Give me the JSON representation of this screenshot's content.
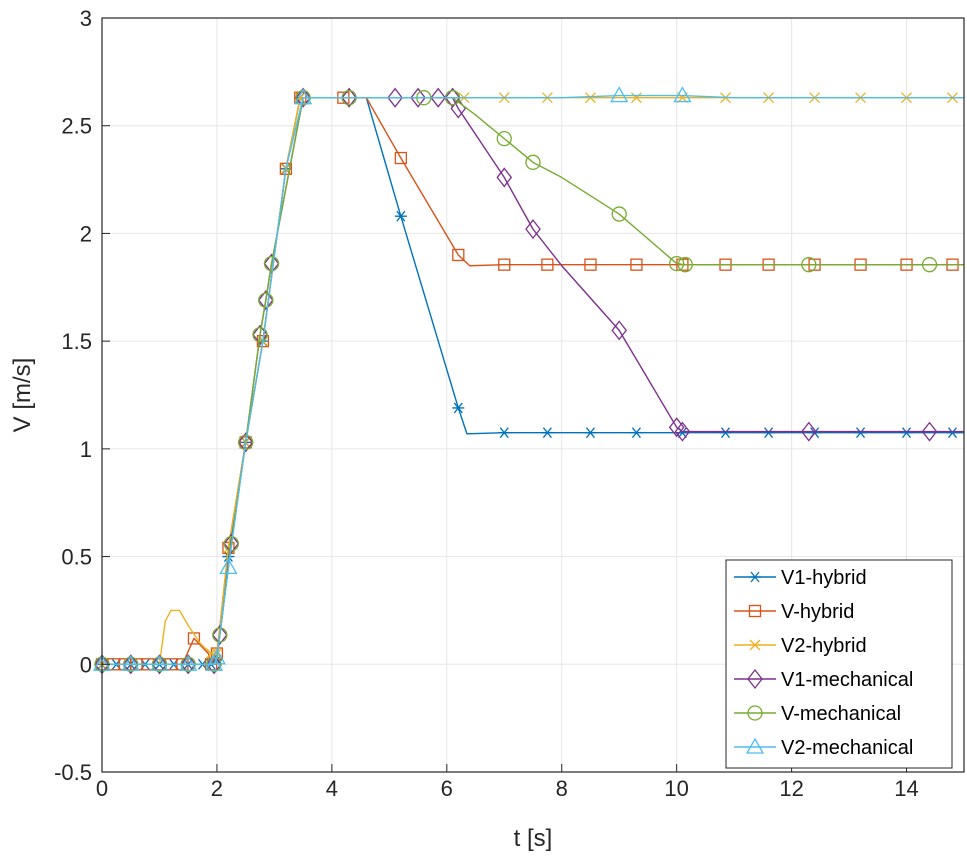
{
  "chart_data": {
    "type": "line",
    "title": "",
    "xlabel": "t [s]",
    "ylabel": "V [m/s]",
    "xlim": [
      0,
      15
    ],
    "ylim": [
      -0.5,
      3
    ],
    "xticks": [
      0,
      2,
      4,
      6,
      8,
      10,
      12,
      14
    ],
    "yticks": [
      -0.5,
      0,
      0.5,
      1,
      1.5,
      2,
      2.5,
      3
    ],
    "xtick_labels": [
      "0",
      "2",
      "4",
      "6",
      "8",
      "10",
      "12",
      "14"
    ],
    "ytick_labels": [
      "-0.5",
      "0",
      "0.5",
      "1",
      "1.5",
      "2",
      "2.5",
      "3"
    ],
    "grid": true,
    "legend_position": "bottom-right",
    "series": [
      {
        "name": "V1-hybrid",
        "color": "#0072BD",
        "marker": "asterisk",
        "x": [
          0,
          1.9,
          2.0,
          2.2,
          2.5,
          2.8,
          3.2,
          3.45,
          4.2,
          4.6,
          5.2,
          6.2,
          6.35,
          7.0,
          7.7,
          8.5,
          9.3,
          10.1,
          10.85,
          11.6,
          12.4,
          13.2,
          14.0,
          14.8,
          15
        ],
        "y": [
          0,
          0,
          0.02,
          0.5,
          1.03,
          1.5,
          2.3,
          2.63,
          2.63,
          2.63,
          2.08,
          1.19,
          1.07,
          1.075,
          1.075,
          1.075,
          1.075,
          1.075,
          1.075,
          1.075,
          1.075,
          1.075,
          1.075,
          1.075,
          1.075
        ]
      },
      {
        "name": "V-hybrid",
        "color": "#D95319",
        "marker": "square",
        "x": [
          0,
          0.2,
          0.4,
          0.6,
          0.8,
          1.0,
          1.2,
          1.4,
          1.6,
          1.85,
          1.9,
          2.0,
          2.2,
          2.5,
          2.8,
          3.2,
          3.45,
          4.2,
          4.6,
          5.2,
          6.2,
          6.4,
          7.0,
          7.7,
          8.5,
          9.3,
          10.1,
          10.85,
          11.6,
          12.4,
          13.2,
          14.0,
          14.8,
          15
        ],
        "y": [
          0,
          0,
          0,
          0,
          0,
          0,
          0,
          0,
          0.12,
          0.05,
          0,
          0.05,
          0.54,
          1.03,
          1.5,
          2.3,
          2.63,
          2.63,
          2.63,
          2.35,
          1.9,
          1.85,
          1.855,
          1.855,
          1.855,
          1.855,
          1.855,
          1.855,
          1.855,
          1.855,
          1.855,
          1.855,
          1.855,
          1.855
        ]
      },
      {
        "name": "V2-hybrid",
        "color": "#EDB120",
        "marker": "x",
        "x": [
          0,
          1.0,
          1.1,
          1.2,
          1.35,
          1.5,
          1.7,
          1.85,
          1.9,
          2.0,
          2.2,
          2.5,
          2.8,
          3.2,
          3.45,
          4.2,
          5.0,
          6.0,
          7.0,
          7.7,
          8.5,
          9.3,
          10.1,
          10.85,
          11.6,
          12.4,
          13.2,
          14.0,
          14.8,
          15
        ],
        "y": [
          0,
          0,
          0.2,
          0.25,
          0.25,
          0.18,
          0.1,
          0.06,
          0.05,
          0.05,
          0.54,
          1.03,
          1.5,
          2.3,
          2.63,
          2.63,
          2.63,
          2.63,
          2.63,
          2.63,
          2.63,
          2.63,
          2.63,
          2.63,
          2.63,
          2.63,
          2.63,
          2.63,
          2.63,
          2.63
        ]
      },
      {
        "name": "V1-mechanical",
        "color": "#7E2F8E",
        "marker": "diamond",
        "x": [
          0,
          1.95,
          2.0,
          2.25,
          2.5,
          2.75,
          2.85,
          2.95,
          3.5,
          4.3,
          5.1,
          5.5,
          6.1,
          6.2,
          6.5,
          7.0,
          7.5,
          8.0,
          9.0,
          10.0,
          10.1,
          11.0,
          12.3,
          13.0,
          14.4,
          15
        ],
        "y": [
          0,
          0,
          0.03,
          0.56,
          1.03,
          1.53,
          1.69,
          1.86,
          2.63,
          2.63,
          2.63,
          2.63,
          2.63,
          2.58,
          2.46,
          2.26,
          2.02,
          1.85,
          1.55,
          1.1,
          1.08,
          1.08,
          1.08,
          1.08,
          1.08,
          1.08
        ]
      },
      {
        "name": "V-mechanical",
        "color": "#77AC30",
        "marker": "circle",
        "x": [
          0,
          1.95,
          2.0,
          2.25,
          2.5,
          2.75,
          2.85,
          2.95,
          3.5,
          4.3,
          5.1,
          5.6,
          6.1,
          6.5,
          7.0,
          7.5,
          8.0,
          9.0,
          10.0,
          10.15,
          11.0,
          12.3,
          13.0,
          14.4,
          15
        ],
        "y": [
          0,
          0,
          0.03,
          0.56,
          1.03,
          1.53,
          1.69,
          1.86,
          2.63,
          2.63,
          2.63,
          2.63,
          2.63,
          2.55,
          2.44,
          2.33,
          2.26,
          2.09,
          1.86,
          1.855,
          1.855,
          1.855,
          1.855,
          1.855,
          1.855
        ]
      },
      {
        "name": "V2-mechanical",
        "color": "#4DBEEE",
        "marker": "triangle",
        "x": [
          0,
          1.95,
          2.0,
          2.2,
          2.5,
          2.8,
          3.2,
          3.5,
          4.3,
          5.2,
          6.1,
          7.0,
          8.0,
          9.0,
          10.1,
          11.0,
          12.0,
          13.0,
          14.0,
          15
        ],
        "y": [
          0,
          0,
          0.03,
          0.45,
          1.03,
          1.5,
          2.3,
          2.63,
          2.63,
          2.63,
          2.63,
          2.63,
          2.63,
          2.64,
          2.64,
          2.63,
          2.63,
          2.63,
          2.63,
          2.63
        ]
      }
    ],
    "series_markers_x": [
      [
        0,
        0.25,
        0.5,
        0.75,
        1.0,
        1.25,
        1.5,
        1.75,
        1.9,
        2.0,
        2.2,
        2.5,
        2.8,
        3.2,
        3.45,
        5.2,
        6.2,
        7.0,
        7.75,
        8.5,
        9.3,
        10.1,
        10.85,
        11.6,
        12.4,
        13.2,
        14.0,
        14.8
      ],
      [
        0,
        0.2,
        0.4,
        0.6,
        0.8,
        1.0,
        1.2,
        1.4,
        1.6,
        1.9,
        2.0,
        2.2,
        2.5,
        2.8,
        3.2,
        3.45,
        4.2,
        5.2,
        6.2,
        7.0,
        7.75,
        8.5,
        9.3,
        10.1,
        10.85,
        11.6,
        12.4,
        13.2,
        14.0,
        14.8
      ],
      [
        0,
        1.9,
        2.0,
        2.2,
        2.5,
        2.8,
        3.2,
        3.45,
        6.3,
        7.0,
        7.75,
        8.5,
        9.3,
        10.1,
        10.85,
        11.6,
        12.4,
        13.2,
        14.0,
        14.8
      ],
      [
        0,
        0.5,
        1.0,
        1.5,
        1.95,
        2.05,
        2.25,
        2.5,
        2.75,
        2.85,
        2.95,
        3.5,
        4.3,
        5.1,
        5.5,
        5.85,
        6.1,
        6.2,
        7.0,
        7.5,
        9.0,
        10.0,
        10.1,
        12.3,
        14.4
      ],
      [
        0,
        0.5,
        1.0,
        1.5,
        1.95,
        2.05,
        2.25,
        2.5,
        2.75,
        2.85,
        2.95,
        3.5,
        4.3,
        5.6,
        6.1,
        7.0,
        7.5,
        9.0,
        10.0,
        10.15,
        12.3,
        14.4
      ],
      [
        0,
        0.5,
        1.0,
        1.5,
        1.95,
        2.0,
        2.2,
        3.5,
        9.0,
        10.1
      ]
    ]
  }
}
